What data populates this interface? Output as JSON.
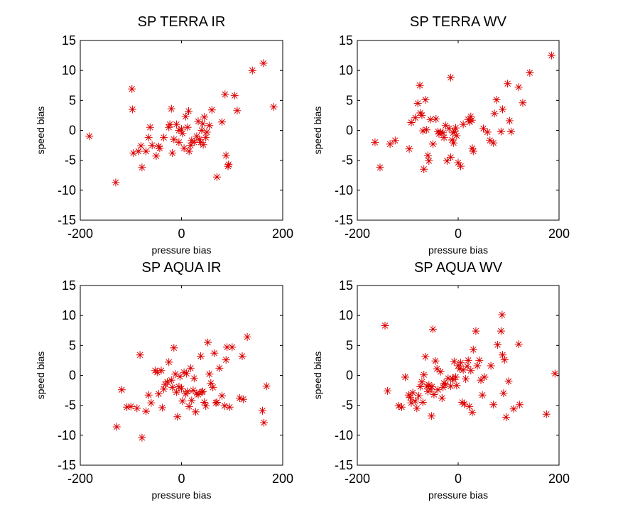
{
  "chart_data": [
    {
      "type": "scatter",
      "title": "SP TERRA IR",
      "xlabel": "pressure bias",
      "ylabel": "speed bias",
      "xlim": [
        -200,
        200
      ],
      "ylim": [
        -15,
        15
      ],
      "xticks": [
        -200,
        0,
        200
      ],
      "yticks": [
        -15,
        -10,
        -5,
        0,
        5,
        10,
        15
      ],
      "grid": false,
      "marker": "asterisk",
      "color": "#dd0000",
      "points": [
        [
          -182,
          -1
        ],
        [
          -130,
          -8.7
        ],
        [
          -98,
          6.9
        ],
        [
          -97,
          3.5
        ],
        [
          -95,
          -3.8
        ],
        [
          -85,
          -3.5
        ],
        [
          -80,
          -2.6
        ],
        [
          -78,
          -6.2
        ],
        [
          -70,
          -3.5
        ],
        [
          -65,
          -1.2
        ],
        [
          -62,
          0.5
        ],
        [
          -58,
          -2.5
        ],
        [
          -50,
          -4.3
        ],
        [
          -45,
          -2.7
        ],
        [
          -43,
          -3
        ],
        [
          -35,
          -1.2
        ],
        [
          -25,
          0.5
        ],
        [
          -23,
          1
        ],
        [
          -20,
          3.6
        ],
        [
          -18,
          -3.8
        ],
        [
          -15,
          -1.5
        ],
        [
          -10,
          1
        ],
        [
          -5,
          -2
        ],
        [
          -5,
          0
        ],
        [
          0,
          0.2
        ],
        [
          2,
          -0.5
        ],
        [
          5,
          -3
        ],
        [
          8,
          2.3
        ],
        [
          12,
          0.5
        ],
        [
          14,
          3.2
        ],
        [
          15,
          -3.5
        ],
        [
          18,
          -2.5
        ],
        [
          20,
          -1.7
        ],
        [
          25,
          -2
        ],
        [
          30,
          -1
        ],
        [
          33,
          1.5
        ],
        [
          35,
          -1.5
        ],
        [
          38,
          -2
        ],
        [
          40,
          0
        ],
        [
          42,
          1.1
        ],
        [
          43,
          -2.4
        ],
        [
          45,
          2.2
        ],
        [
          48,
          -1.2
        ],
        [
          50,
          -0.3
        ],
        [
          55,
          0.8
        ],
        [
          60,
          3.4
        ],
        [
          70,
          -7.8
        ],
        [
          80,
          1.4
        ],
        [
          86,
          6
        ],
        [
          88,
          -4.2
        ],
        [
          92,
          -6
        ],
        [
          93,
          -5.7
        ],
        [
          105,
          5.8
        ],
        [
          110,
          3.3
        ],
        [
          140,
          10
        ],
        [
          162,
          11.2
        ],
        [
          182,
          3.9
        ]
      ]
    },
    {
      "type": "scatter",
      "title": "SP TERRA WV",
      "xlabel": "pressure bias",
      "ylabel": "speed bias",
      "xlim": [
        -200,
        200
      ],
      "ylim": [
        -15,
        15
      ],
      "xticks": [
        -200,
        0,
        200
      ],
      "yticks": [
        -15,
        -10,
        -5,
        0,
        5,
        10,
        15
      ],
      "grid": false,
      "marker": "asterisk",
      "color": "#dd0000",
      "points": [
        [
          -165,
          -2
        ],
        [
          -155,
          -6.2
        ],
        [
          -135,
          -2.3
        ],
        [
          -125,
          -1.7
        ],
        [
          -97,
          -3.1
        ],
        [
          -93,
          1.3
        ],
        [
          -85,
          2.1
        ],
        [
          -80,
          4.5
        ],
        [
          -76,
          7.5
        ],
        [
          -75,
          2.9
        ],
        [
          -72,
          2.5
        ],
        [
          -70,
          -0.1
        ],
        [
          -68,
          -6.5
        ],
        [
          -65,
          5.1
        ],
        [
          -63,
          0.1
        ],
        [
          -60,
          -4.2
        ],
        [
          -58,
          -5.1
        ],
        [
          -55,
          1.8
        ],
        [
          -50,
          -2.3
        ],
        [
          -44,
          1.9
        ],
        [
          -40,
          -0.2
        ],
        [
          -38,
          -0.6
        ],
        [
          -35,
          -0.3
        ],
        [
          -30,
          -0.4
        ],
        [
          -28,
          -1.2
        ],
        [
          -25,
          0.8
        ],
        [
          -22,
          -5.1
        ],
        [
          -18,
          0.3
        ],
        [
          -15,
          8.8
        ],
        [
          -15,
          -4.5
        ],
        [
          -12,
          -1.6
        ],
        [
          -10,
          -0.4
        ],
        [
          -9,
          -2.1
        ],
        [
          -7,
          -0.2
        ],
        [
          -5,
          0.4
        ],
        [
          -3,
          -0.9
        ],
        [
          0,
          -5.4
        ],
        [
          5,
          -6
        ],
        [
          10,
          1
        ],
        [
          20,
          1.8
        ],
        [
          23,
          1.4
        ],
        [
          25,
          2.3
        ],
        [
          27,
          1.7
        ],
        [
          28,
          -3
        ],
        [
          30,
          -3.5
        ],
        [
          50,
          0.3
        ],
        [
          58,
          -0.3
        ],
        [
          63,
          -1.7
        ],
        [
          70,
          -2.1
        ],
        [
          72,
          2.8
        ],
        [
          76,
          5.1
        ],
        [
          85,
          -0.2
        ],
        [
          88,
          3.5
        ],
        [
          98,
          7.8
        ],
        [
          102,
          1.6
        ],
        [
          105,
          -0.2
        ],
        [
          120,
          7.2
        ],
        [
          128,
          4.6
        ],
        [
          142,
          9.6
        ],
        [
          185,
          12.5
        ]
      ]
    },
    {
      "type": "scatter",
      "title": "SP AQUA IR",
      "xlabel": "pressure bias",
      "ylabel": "speed bias",
      "xlim": [
        -200,
        200
      ],
      "ylim": [
        -15,
        15
      ],
      "xticks": [
        -200,
        0,
        200
      ],
      "yticks": [
        -15,
        -10,
        -5,
        0,
        5,
        10,
        15
      ],
      "grid": false,
      "marker": "asterisk",
      "color": "#dd0000",
      "points": [
        [
          -128,
          -8.6
        ],
        [
          -118,
          -2.4
        ],
        [
          -108,
          -5.3
        ],
        [
          -100,
          -5.2
        ],
        [
          -88,
          -5.5
        ],
        [
          -82,
          3.4
        ],
        [
          -78,
          -10.4
        ],
        [
          -70,
          -6
        ],
        [
          -65,
          -3.3
        ],
        [
          -60,
          -4.6
        ],
        [
          -52,
          0.8
        ],
        [
          -48,
          0.5
        ],
        [
          -45,
          -3.1
        ],
        [
          -40,
          0.8
        ],
        [
          -38,
          -5.4
        ],
        [
          -35,
          -2.3
        ],
        [
          -32,
          -1.5
        ],
        [
          -28,
          -1.1
        ],
        [
          -25,
          2.2
        ],
        [
          -20,
          -0.8
        ],
        [
          -18,
          -2
        ],
        [
          -15,
          4.6
        ],
        [
          -12,
          0.2
        ],
        [
          -10,
          -2.8
        ],
        [
          -8,
          -6.9
        ],
        [
          -5,
          -1.9
        ],
        [
          -3,
          -0.2
        ],
        [
          0,
          -2.2
        ],
        [
          2,
          -4.3
        ],
        [
          5,
          0.5
        ],
        [
          8,
          -3.1
        ],
        [
          10,
          0.3
        ],
        [
          12,
          -2.7
        ],
        [
          15,
          -5.2
        ],
        [
          18,
          1.2
        ],
        [
          20,
          -4.2
        ],
        [
          23,
          -2.5
        ],
        [
          25,
          -0.5
        ],
        [
          28,
          -6.1
        ],
        [
          30,
          -3
        ],
        [
          33,
          -3.2
        ],
        [
          38,
          3.2
        ],
        [
          40,
          -2.8
        ],
        [
          42,
          -2.7
        ],
        [
          45,
          -4.5
        ],
        [
          48,
          -5.1
        ],
        [
          52,
          5.5
        ],
        [
          55,
          0.2
        ],
        [
          58,
          -1.3
        ],
        [
          62,
          -2
        ],
        [
          65,
          3.7
        ],
        [
          68,
          -4.6
        ],
        [
          70,
          -4.5
        ],
        [
          75,
          1.2
        ],
        [
          80,
          -3.4
        ],
        [
          85,
          -5.1
        ],
        [
          88,
          2.6
        ],
        [
          90,
          4.7
        ],
        [
          95,
          -5.3
        ],
        [
          100,
          4.7
        ],
        [
          115,
          -3.8
        ],
        [
          120,
          3.2
        ],
        [
          122,
          -4
        ],
        [
          130,
          6.4
        ],
        [
          160,
          -5.9
        ],
        [
          163,
          -7.9
        ],
        [
          168,
          -1.8
        ]
      ]
    },
    {
      "type": "scatter",
      "title": "SP AQUA WV",
      "xlabel": "pressure bias",
      "ylabel": "speed bias",
      "xlim": [
        -200,
        200
      ],
      "ylim": [
        -15,
        15
      ],
      "xticks": [
        -200,
        0,
        200
      ],
      "yticks": [
        -15,
        -10,
        -5,
        0,
        5,
        10,
        15
      ],
      "grid": false,
      "marker": "asterisk",
      "color": "#dd0000",
      "points": [
        [
          -145,
          8.3
        ],
        [
          -140,
          -2.6
        ],
        [
          -118,
          -5.1
        ],
        [
          -112,
          -5.3
        ],
        [
          -105,
          -0.3
        ],
        [
          -98,
          -3.3
        ],
        [
          -95,
          -3.7
        ],
        [
          -93,
          -4.6
        ],
        [
          -90,
          -2.9
        ],
        [
          -85,
          -4.3
        ],
        [
          -82,
          -5.5
        ],
        [
          -78,
          -3.4
        ],
        [
          -75,
          -1.9
        ],
        [
          -72,
          -1.1
        ],
        [
          -70,
          -4.5
        ],
        [
          -68,
          0.1
        ],
        [
          -65,
          3.1
        ],
        [
          -62,
          -1.8
        ],
        [
          -60,
          -2.7
        ],
        [
          -58,
          -1.6
        ],
        [
          -55,
          -2.3
        ],
        [
          -53,
          -6.8
        ],
        [
          -52,
          -1.9
        ],
        [
          -50,
          7.7
        ],
        [
          -48,
          -3.2
        ],
        [
          -45,
          2.4
        ],
        [
          -42,
          1.1
        ],
        [
          -40,
          -2.4
        ],
        [
          -35,
          0.6
        ],
        [
          -32,
          -3.8
        ],
        [
          -30,
          -2
        ],
        [
          -28,
          -1.3
        ],
        [
          -25,
          -1.5
        ],
        [
          -20,
          -0.5
        ],
        [
          -15,
          -1.8
        ],
        [
          -12,
          -0.5
        ],
        [
          -10,
          -0.7
        ],
        [
          -8,
          2.3
        ],
        [
          -5,
          -0.3
        ],
        [
          -3,
          -1.7
        ],
        [
          0,
          1.6
        ],
        [
          3,
          1.1
        ],
        [
          5,
          2.1
        ],
        [
          8,
          -4.5
        ],
        [
          10,
          0.9
        ],
        [
          12,
          -4.8
        ],
        [
          15,
          -0.6
        ],
        [
          18,
          1.5
        ],
        [
          20,
          2.5
        ],
        [
          22,
          -5.2
        ],
        [
          25,
          0.8
        ],
        [
          28,
          -6.2
        ],
        [
          30,
          4.3
        ],
        [
          35,
          7.4
        ],
        [
          38,
          1.6
        ],
        [
          42,
          2.5
        ],
        [
          45,
          -0.8
        ],
        [
          48,
          -3.3
        ],
        [
          52,
          -0.3
        ],
        [
          65,
          1.6
        ],
        [
          70,
          -4.9
        ],
        [
          78,
          5.1
        ],
        [
          85,
          7.4
        ],
        [
          87,
          10.1
        ],
        [
          88,
          3.4
        ],
        [
          90,
          -3
        ],
        [
          92,
          2.6
        ],
        [
          95,
          -7
        ],
        [
          100,
          -1
        ],
        [
          110,
          -5.6
        ],
        [
          120,
          5.2
        ],
        [
          122,
          -4.9
        ],
        [
          175,
          -6.5
        ],
        [
          192,
          0.3
        ]
      ]
    }
  ]
}
